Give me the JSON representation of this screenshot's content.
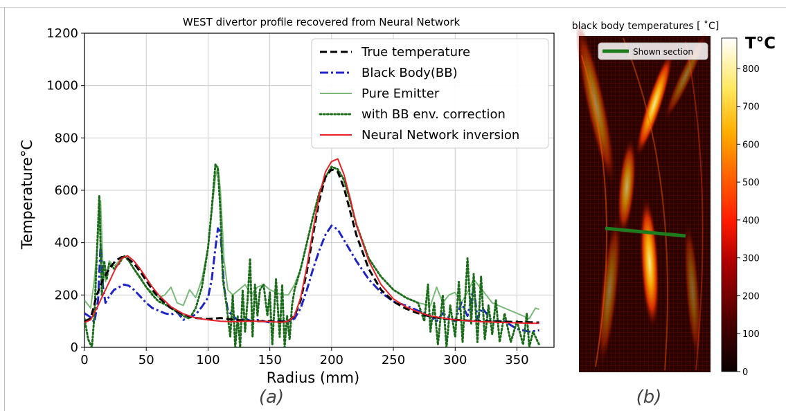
{
  "panel_a": {
    "caption": "(a)"
  },
  "panel_b": {
    "caption": "(b)",
    "title": "black body temperatures [$^\\circ$C]",
    "title_display": "black body temperatures [ ˚C]",
    "legend_label": "Shown section",
    "colorbar_title": "T°C",
    "colorbar_ticks": [
      "0",
      "100",
      "200",
      "300",
      "400",
      "500",
      "600",
      "700",
      "800"
    ],
    "colormap": "hot",
    "section_color": "#1e7b1e"
  },
  "chart_data": [
    {
      "type": "line",
      "title": "WEST divertor profile recovered from Neural Network",
      "xlabel": "Radius (mm)",
      "ylabel": "Temperature°C",
      "xlim": [
        0,
        380
      ],
      "ylim": [
        0,
        1200
      ],
      "xticks": [
        0,
        50,
        100,
        150,
        200,
        250,
        300,
        350
      ],
      "yticks": [
        0,
        200,
        400,
        600,
        800,
        1000,
        1200
      ],
      "grid": true,
      "legend_position": "top-right",
      "series": [
        {
          "name": "True temperature",
          "color": "#000000",
          "style": "dashed",
          "x": [
            0,
            5,
            10,
            15,
            20,
            25,
            30,
            35,
            40,
            45,
            50,
            55,
            60,
            70,
            80,
            90,
            100,
            110,
            120,
            130,
            140,
            150,
            160,
            165,
            170,
            175,
            180,
            185,
            190,
            195,
            200,
            205,
            210,
            215,
            220,
            230,
            240,
            250,
            260,
            270,
            280,
            290,
            300,
            320,
            340,
            360,
            368
          ],
          "y": [
            100,
            110,
            200,
            260,
            300,
            330,
            345,
            340,
            320,
            290,
            255,
            220,
            190,
            150,
            125,
            112,
            108,
            112,
            106,
            102,
            100,
            100,
            98,
            100,
            120,
            180,
            290,
            430,
            560,
            650,
            680,
            670,
            610,
            520,
            430,
            300,
            220,
            175,
            148,
            130,
            118,
            110,
            105,
            100,
            98,
            96,
            95
          ]
        },
        {
          "name": "Black Body(BB)",
          "color": "#1f24c8",
          "style": "dashdot",
          "x": [
            0,
            5,
            8,
            11,
            13,
            15,
            17,
            20,
            24,
            28,
            32,
            36,
            40,
            45,
            50,
            55,
            60,
            65,
            70,
            75,
            80,
            85,
            90,
            95,
            100,
            103,
            106,
            108,
            110,
            113,
            116,
            120,
            125,
            130,
            135,
            140,
            145,
            150,
            155,
            160,
            165,
            170,
            175,
            180,
            185,
            190,
            195,
            200,
            205,
            210,
            220,
            230,
            240,
            250,
            260,
            270,
            280,
            285,
            290,
            300,
            305,
            310,
            315,
            318,
            322,
            330,
            340,
            350,
            360,
            368
          ],
          "y": [
            130,
            115,
            95,
            180,
            390,
            230,
            170,
            195,
            220,
            230,
            240,
            235,
            220,
            195,
            170,
            150,
            140,
            130,
            125,
            135,
            105,
            115,
            125,
            155,
            190,
            260,
            380,
            455,
            440,
            230,
            140,
            120,
            100,
            110,
            100,
            105,
            100,
            95,
            98,
            100,
            98,
            110,
            150,
            220,
            300,
            370,
            430,
            465,
            450,
            410,
            330,
            260,
            210,
            175,
            160,
            140,
            120,
            100,
            130,
            100,
            170,
            120,
            230,
            110,
            150,
            100,
            100,
            70,
            60,
            65
          ]
        },
        {
          "name": "Pure Emitter",
          "color": "#7ab97a",
          "style": "solid",
          "x": [
            0,
            5,
            8,
            11,
            13,
            15,
            17,
            20,
            24,
            28,
            32,
            36,
            40,
            45,
            50,
            55,
            60,
            65,
            70,
            75,
            80,
            85,
            90,
            95,
            100,
            103,
            106,
            108,
            110,
            113,
            116,
            120,
            125,
            130,
            135,
            140,
            145,
            150,
            155,
            160,
            165,
            170,
            175,
            180,
            185,
            190,
            195,
            200,
            205,
            210,
            215,
            220,
            230,
            240,
            250,
            260,
            270,
            280,
            285,
            290,
            295,
            300,
            305,
            310,
            315,
            320,
            325,
            330,
            340,
            350,
            360,
            365,
            368
          ],
          "y": [
            180,
            150,
            260,
            420,
            560,
            300,
            250,
            330,
            310,
            330,
            350,
            330,
            300,
            270,
            230,
            210,
            190,
            200,
            230,
            170,
            160,
            220,
            190,
            260,
            380,
            520,
            650,
            690,
            600,
            330,
            220,
            200,
            220,
            240,
            200,
            230,
            240,
            220,
            210,
            200,
            200,
            240,
            300,
            400,
            500,
            590,
            650,
            690,
            680,
            640,
            560,
            470,
            340,
            270,
            220,
            190,
            170,
            160,
            230,
            170,
            200,
            210,
            170,
            210,
            260,
            230,
            200,
            170,
            150,
            130,
            110,
            150,
            145
          ]
        },
        {
          "name": "with BB env.  correction",
          "color": "#1a6b1a",
          "style": "dotted",
          "x": [
            0,
            3,
            6,
            8,
            10,
            12,
            14,
            16,
            18,
            20,
            24,
            28,
            32,
            36,
            40,
            45,
            50,
            55,
            60,
            65,
            70,
            75,
            80,
            85,
            90,
            95,
            100,
            103,
            106,
            108,
            110,
            112,
            115,
            118,
            120,
            122,
            124,
            126,
            128,
            130,
            132,
            134,
            136,
            138,
            140,
            142,
            145,
            148,
            150,
            152,
            155,
            158,
            160,
            162,
            164,
            166,
            168,
            170,
            175,
            180,
            185,
            190,
            195,
            200,
            205,
            210,
            215,
            220,
            230,
            240,
            250,
            260,
            270,
            275,
            278,
            280,
            283,
            286,
            290,
            293,
            296,
            300,
            303,
            306,
            310,
            313,
            315,
            318,
            321,
            324,
            327,
            330,
            333,
            336,
            340,
            345,
            350,
            355,
            358,
            360,
            363,
            366,
            368
          ],
          "y": [
            110,
            30,
            0,
            120,
            350,
            580,
            200,
            330,
            260,
            320,
            300,
            320,
            350,
            330,
            300,
            265,
            230,
            200,
            175,
            165,
            150,
            135,
            120,
            110,
            150,
            230,
            380,
            530,
            700,
            680,
            520,
            260,
            160,
            40,
            200,
            0,
            120,
            0,
            220,
            60,
            180,
            340,
            40,
            240,
            120,
            220,
            240,
            120,
            210,
            10,
            260,
            40,
            240,
            0,
            120,
            30,
            160,
            220,
            300,
            400,
            500,
            590,
            650,
            690,
            680,
            640,
            560,
            470,
            340,
            270,
            220,
            190,
            170,
            100,
            240,
            60,
            170,
            10,
            200,
            0,
            160,
            40,
            250,
            20,
            340,
            90,
            280,
            20,
            270,
            30,
            160,
            50,
            180,
            20,
            130,
            20,
            100,
            10,
            130,
            0,
            60,
            30,
            10
          ]
        },
        {
          "name": "Neural Network inversion",
          "color": "#e8202a",
          "style": "solid",
          "x": [
            0,
            5,
            10,
            15,
            20,
            25,
            30,
            35,
            40,
            45,
            50,
            55,
            60,
            70,
            80,
            90,
            100,
            110,
            120,
            130,
            140,
            150,
            160,
            165,
            170,
            175,
            180,
            185,
            190,
            195,
            200,
            205,
            210,
            215,
            220,
            230,
            240,
            250,
            260,
            270,
            280,
            290,
            300,
            320,
            340,
            360,
            368
          ],
          "y": [
            95,
            105,
            150,
            200,
            250,
            300,
            340,
            350,
            330,
            300,
            265,
            230,
            200,
            155,
            128,
            112,
            105,
            100,
            98,
            100,
            100,
            98,
            96,
            100,
            120,
            190,
            310,
            450,
            580,
            670,
            710,
            720,
            660,
            570,
            470,
            330,
            240,
            185,
            155,
            135,
            120,
            112,
            105,
            98,
            95,
            92,
            92
          ]
        }
      ]
    }
  ]
}
